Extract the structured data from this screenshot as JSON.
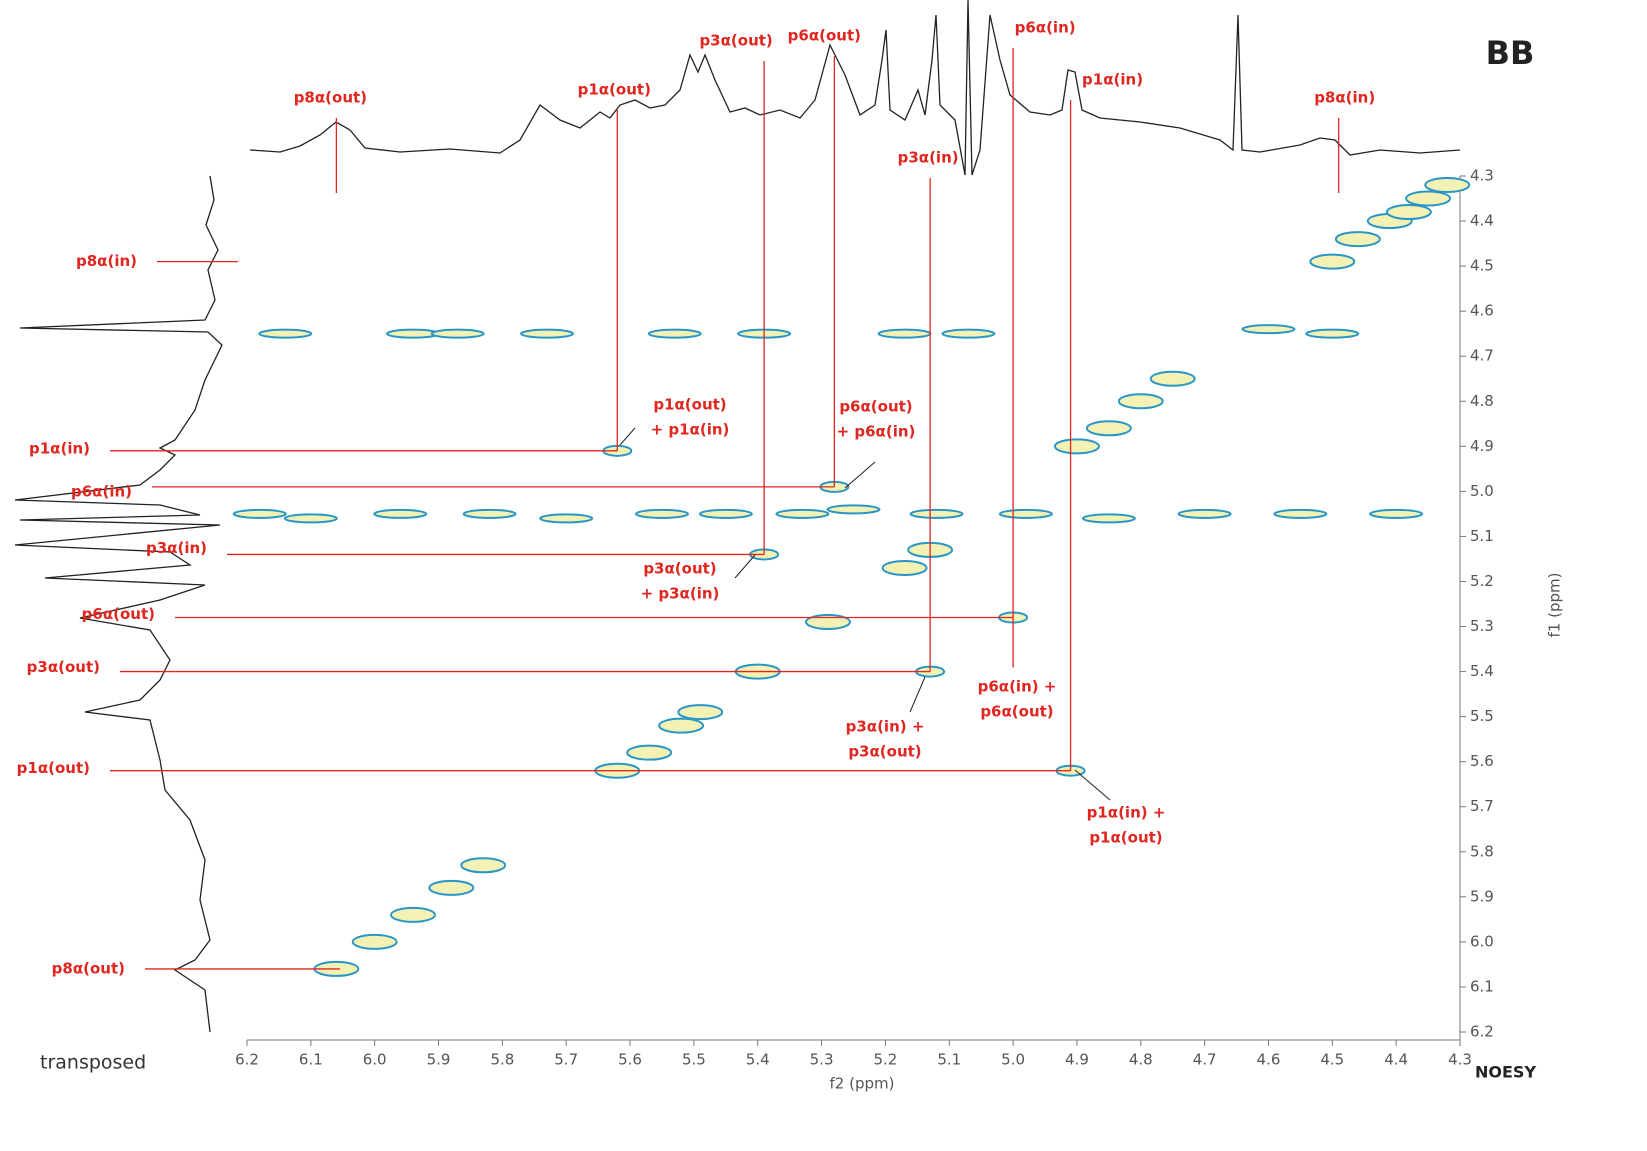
{
  "chart_data": {
    "type": "scatter",
    "title": "BB",
    "xlabel": "f2 (ppm)",
    "ylabel": "f1 (ppm)",
    "left_label": "transposed",
    "right_label": "NOESY",
    "xlim": [
      6.2,
      4.3
    ],
    "ylim": [
      6.2,
      4.3
    ],
    "xticks": [
      6.2,
      6.1,
      {
        "value": 6,
        "label": "6.0"
      },
      5.9,
      5.8,
      5.7,
      5.6,
      5.5,
      5.4,
      5.3,
      5.2,
      5.1,
      {
        "value": 5,
        "label": "5.0"
      },
      4.9,
      4.8,
      4.7,
      4.6,
      4.5,
      4.4,
      4.3
    ],
    "yticks": [
      4.3,
      4.4,
      4.5,
      4.6,
      4.7,
      4.8,
      4.9,
      {
        "value": 5,
        "label": "5.0"
      },
      5.1,
      5.2,
      5.3,
      5.4,
      5.5,
      5.6,
      5.7,
      5.8,
      5.9,
      {
        "value": 6,
        "label": "6.0"
      },
      6.1,
      6.2
    ],
    "series": [
      {
        "color": "#2a96c8",
        "shape": "diagonal",
        "x": [
          6.06,
          6.0,
          5.94,
          5.88,
          5.83,
          5.62,
          5.57,
          5.52,
          5.49,
          5.4,
          5.29,
          5.17,
          5.13,
          4.9,
          4.85,
          4.8,
          4.75,
          4.5,
          4.46,
          4.41,
          4.38,
          4.35,
          4.32
        ],
        "values": [
          6.06,
          6.0,
          5.94,
          5.88,
          5.83,
          5.62,
          5.58,
          5.52,
          5.49,
          5.4,
          5.29,
          5.17,
          5.13,
          4.9,
          4.86,
          4.8,
          4.75,
          4.49,
          4.44,
          4.4,
          4.38,
          4.35,
          4.32
        ]
      },
      {
        "color": "#2a96c8",
        "shape": "cross",
        "x": [
          5.62,
          5.28,
          5.39,
          5.13,
          5.0,
          4.91
        ],
        "values": [
          4.91,
          4.99,
          5.14,
          5.4,
          5.28,
          5.62
        ]
      },
      {
        "color": "#2a96c8",
        "shape": "streak",
        "x": [
          6.14,
          5.94,
          5.87,
          5.73,
          5.53,
          5.39,
          5.17,
          5.07,
          4.6,
          4.5,
          6.18,
          6.1,
          5.96,
          5.82,
          5.7,
          5.55,
          5.45,
          5.33,
          5.25,
          5.12,
          4.98,
          4.85,
          4.7,
          4.55,
          4.4
        ],
        "values": [
          4.65,
          4.65,
          4.65,
          4.65,
          4.65,
          4.65,
          4.65,
          4.65,
          4.64,
          4.65,
          5.05,
          5.06,
          5.05,
          5.05,
          5.06,
          5.05,
          5.05,
          5.05,
          5.04,
          5.05,
          5.05,
          5.06,
          5.05,
          5.05,
          5.05
        ]
      }
    ],
    "top_labels": [
      {
        "label": "p8α(out)",
        "x": 6.06
      },
      {
        "label": "p1α(out)",
        "x": 5.62
      },
      {
        "label": "p3α(out)",
        "x": 5.39
      },
      {
        "label": "p6α(out)",
        "x": 5.28
      },
      {
        "label": "p3α(in)",
        "x": 5.13
      },
      {
        "label": "p6α(in)",
        "x": 5.0
      },
      {
        "label": "p1α(in)",
        "x": 4.91
      },
      {
        "label": "p8α(in)",
        "x": 4.49
      }
    ],
    "left_labels": [
      {
        "label": "p8α(in)",
        "y": 4.49
      },
      {
        "label": "p1α(in)",
        "y": 4.91
      },
      {
        "label": "p6α(in)",
        "y": 4.99
      },
      {
        "label": "p3α(in)",
        "y": 5.14
      },
      {
        "label": "p6α(out)",
        "y": 5.28
      },
      {
        "label": "p3α(out)",
        "y": 5.4
      },
      {
        "label": "p1α(out)",
        "y": 5.62
      },
      {
        "label": "p8α(out)",
        "y": 6.06
      }
    ],
    "cross_labels": [
      [
        "p1α(out)",
        "+ p1α(in)"
      ],
      [
        "p6α(out)",
        "+ p6α(in)"
      ],
      [
        "p3α(out)",
        "+ p3α(in)"
      ],
      [
        "p3α(in) +",
        "p3α(out)"
      ],
      [
        "p6α(in) +",
        "p6α(out)"
      ],
      [
        "p1α(in) +",
        "p1α(out)"
      ]
    ]
  }
}
